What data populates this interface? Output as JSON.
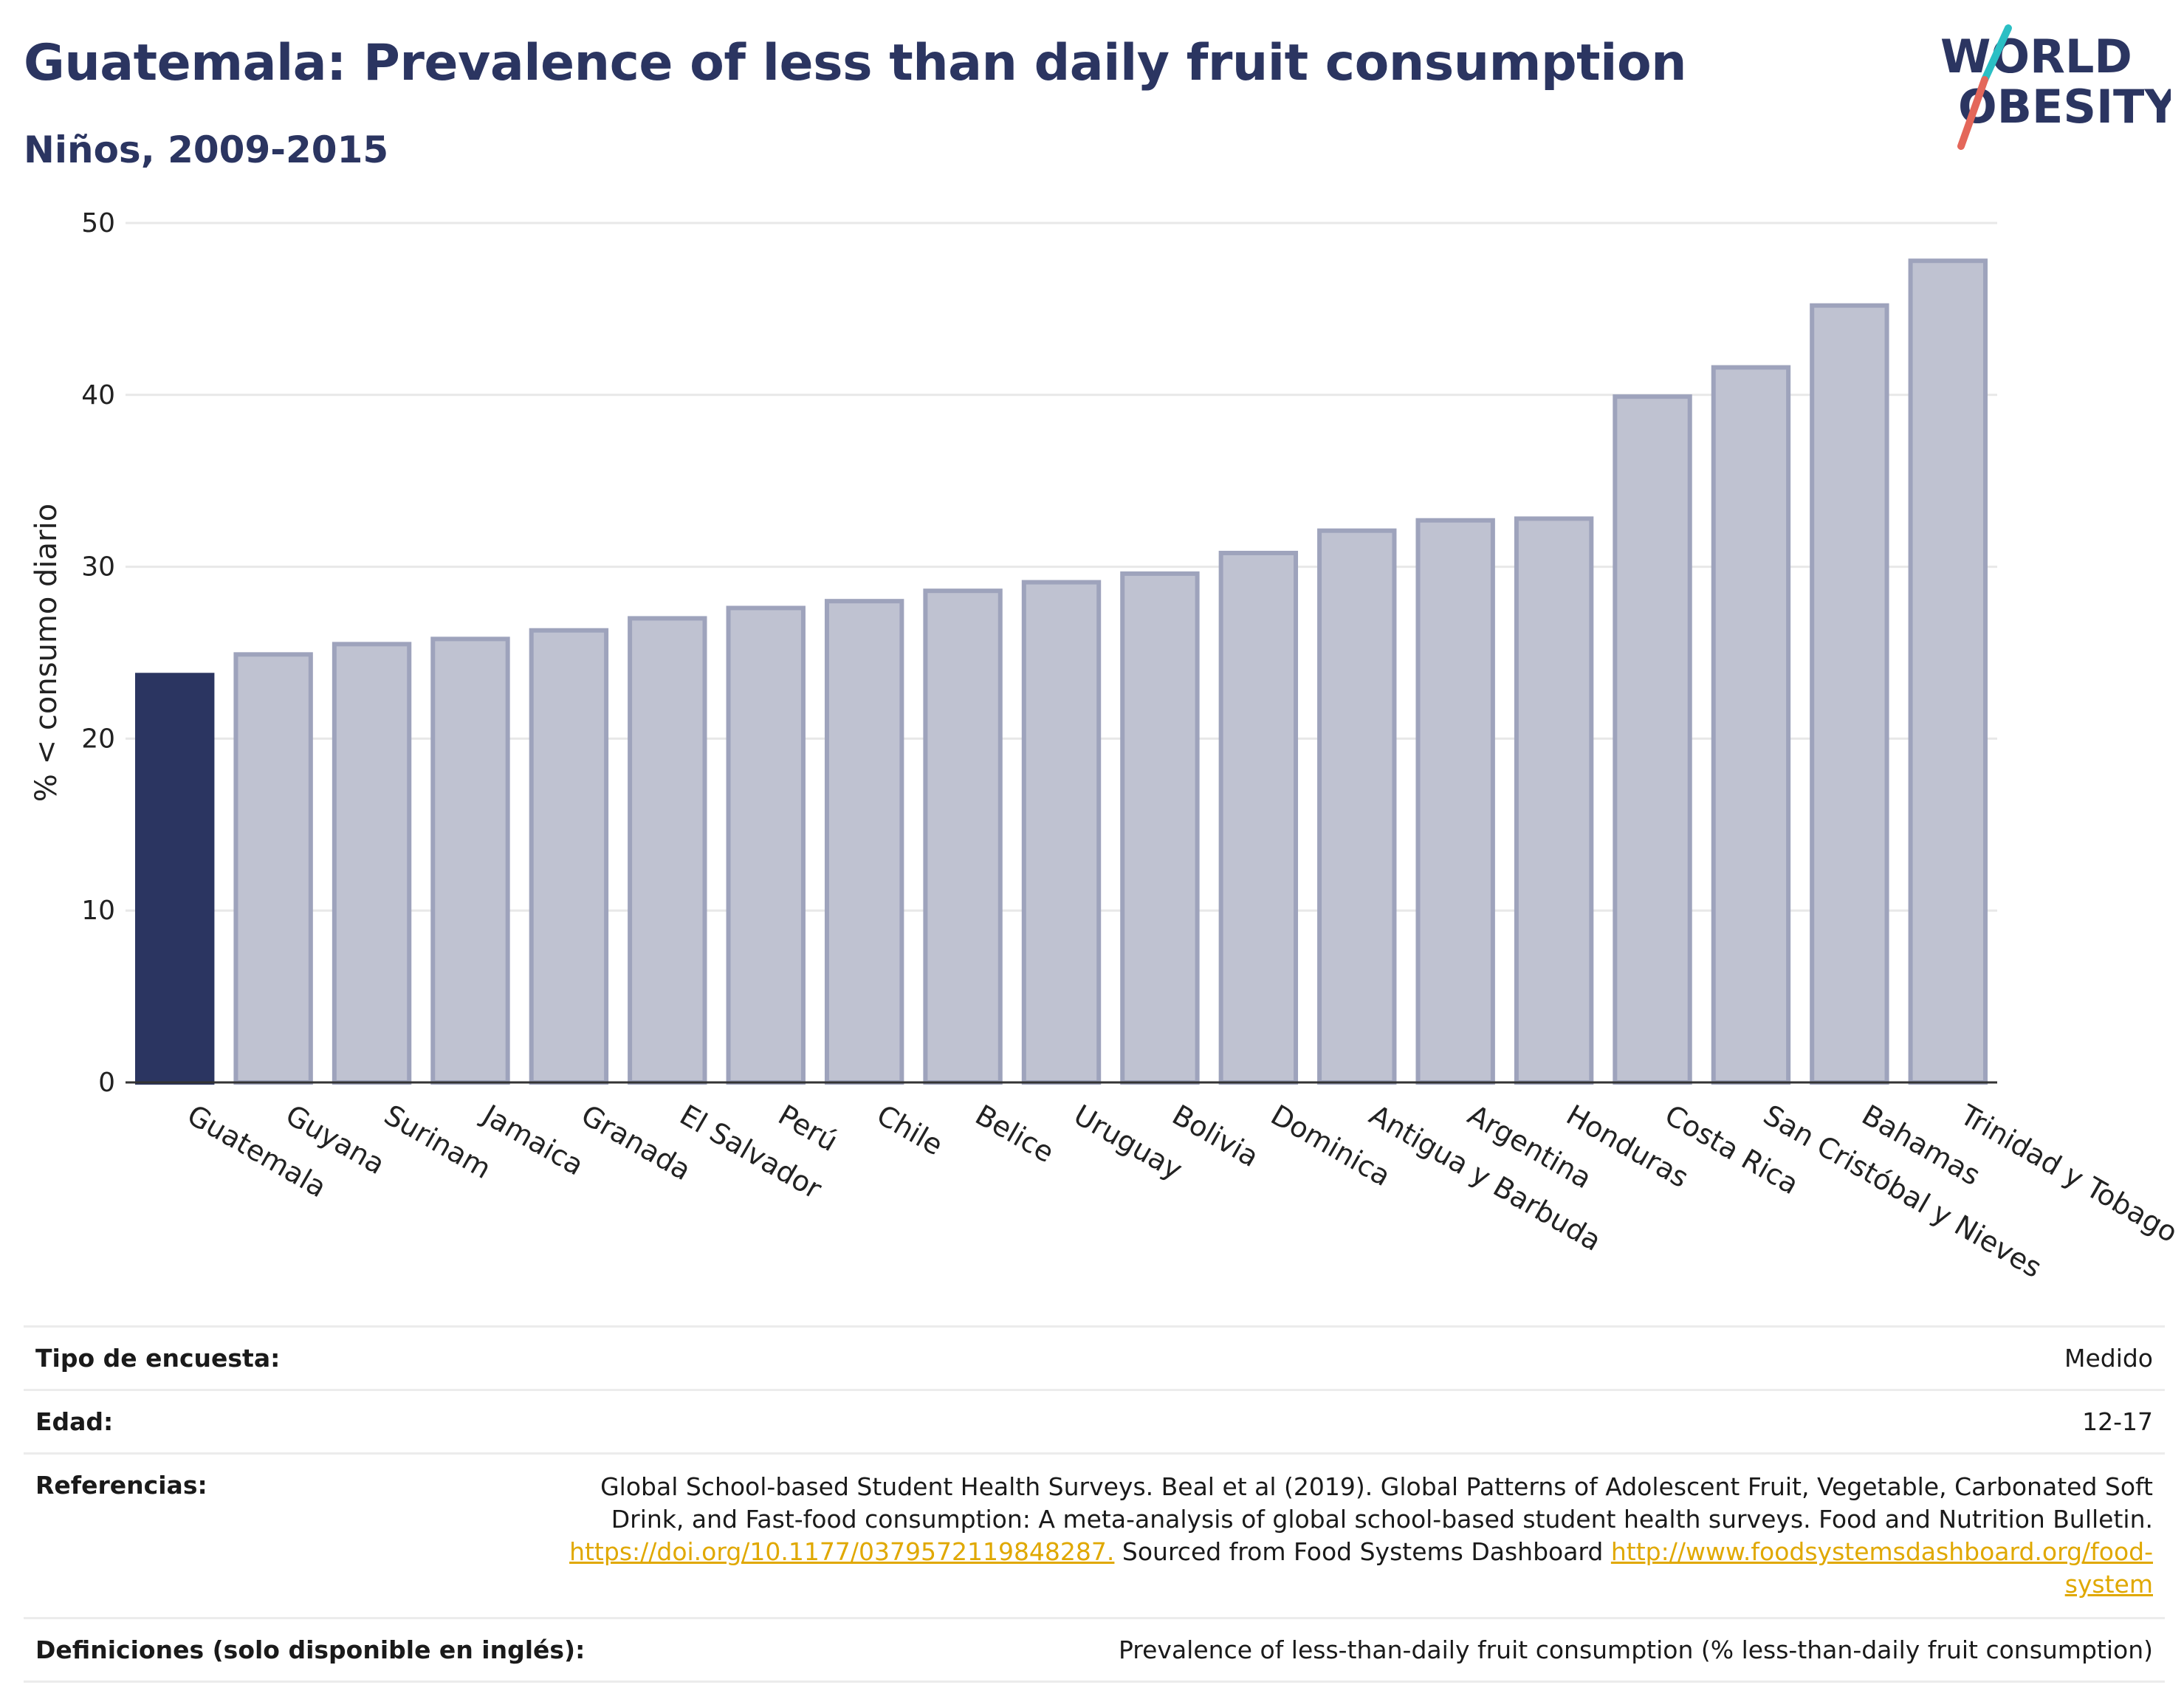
{
  "title": "Guatemala: Prevalence of less than daily fruit consumption",
  "subtitle": "Niños, 2009-2015",
  "logo": {
    "line1": "WORLD",
    "line2": "OBESITY"
  },
  "colors": {
    "highlight": "#2b3561",
    "bar": "#bfc2d1",
    "bar_border": "#9ea3bc",
    "grid": "#e8e8e8",
    "accent_teal": "#2bbfc4",
    "accent_red": "#e4675a"
  },
  "chart_data": {
    "type": "bar",
    "ylabel": "% < consumo diario",
    "xlabel": "",
    "ylim": [
      0,
      50
    ],
    "yticks": [
      0,
      10,
      20,
      30,
      40,
      50
    ],
    "grid": true,
    "highlight_category": "Guatemala",
    "categories": [
      "Guatemala",
      "Guyana",
      "Surinam",
      "Jamaica",
      "Granada",
      "El Salvador",
      "Perú",
      "Chile",
      "Belice",
      "Uruguay",
      "Bolivia",
      "Dominica",
      "Antigua y Barbuda",
      "Argentina",
      "Honduras",
      "Costa Rica",
      "San Cristóbal y Nieves",
      "Bahamas",
      "Trinidad y Tobago"
    ],
    "values": [
      23.7,
      24.9,
      25.5,
      25.8,
      26.3,
      27.0,
      27.6,
      28.0,
      28.6,
      29.1,
      29.6,
      30.8,
      32.1,
      32.7,
      32.8,
      39.9,
      41.6,
      45.2,
      47.8
    ]
  },
  "info": {
    "survey_type": {
      "label": "Tipo de encuesta:",
      "value": "Medido"
    },
    "age": {
      "label": "Edad:",
      "value": "12-17"
    },
    "references": {
      "label": "Referencias:",
      "text1": "Global School-based Student Health Surveys. Beal et al (2019). Global Patterns of Adolescent Fruit, Vegetable, Carbonated Soft Drink, and Fast-food consumption: A meta-analysis of global school-based student health surveys. Food and Nutrition Bulletin.",
      "link1": "https://doi.org/10.1177/0379572119848287.",
      "text2": "Sourced from Food Systems Dashboard",
      "link2": "http://www.foodsystemsdashboard.org/food-system"
    },
    "definitions": {
      "label": "Definiciones (solo disponible en inglés):",
      "value": "Prevalence of less-than-daily fruit consumption (% less-than-daily fruit consumption)"
    }
  }
}
